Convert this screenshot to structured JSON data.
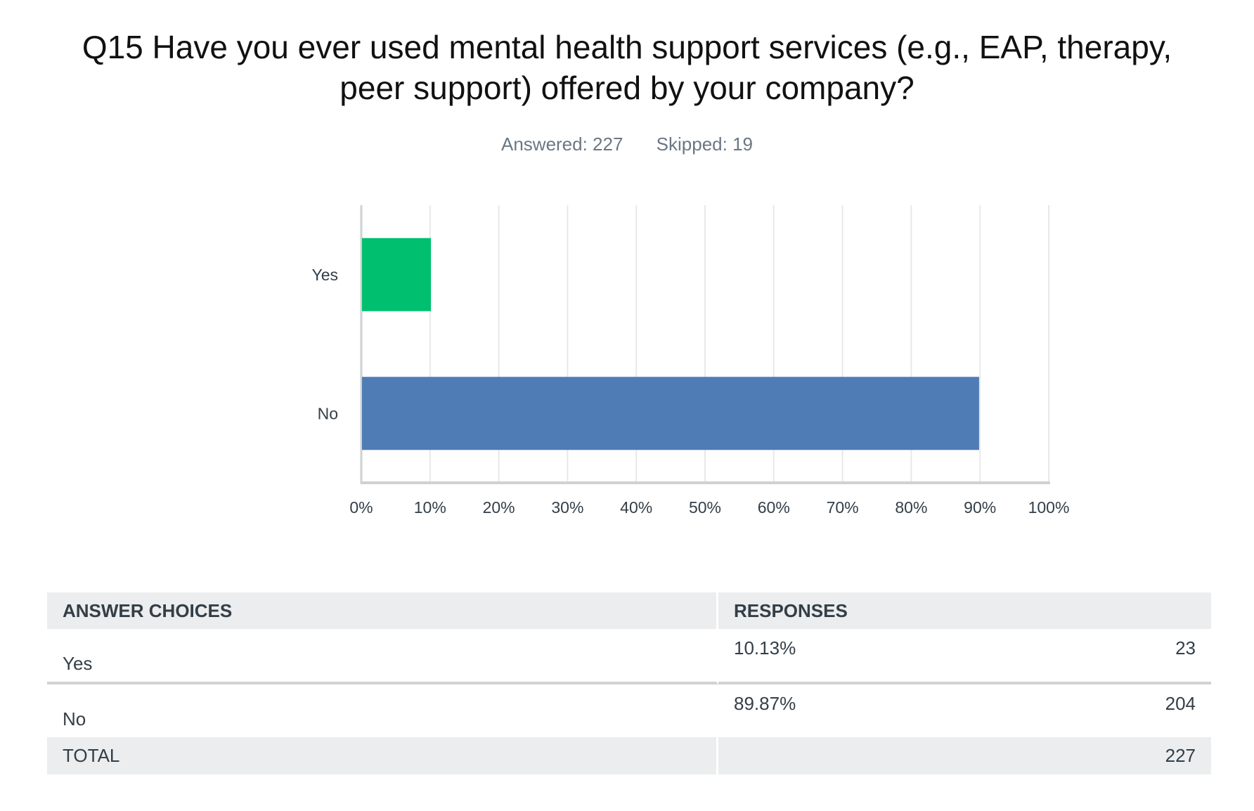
{
  "header": {
    "title": "Q15 Have you ever used mental health support services (e.g., EAP, therapy, peer support) offered by your company?",
    "answered": "Answered: 227",
    "skipped": "Skipped: 19"
  },
  "chart_data": {
    "type": "bar",
    "orientation": "horizontal",
    "categories": [
      "Yes",
      "No"
    ],
    "values": [
      10.13,
      89.87
    ],
    "colors": [
      "#00bf6f",
      "#507cb6"
    ],
    "xlim": [
      0,
      100
    ],
    "xticks": [
      "0%",
      "10%",
      "20%",
      "30%",
      "40%",
      "50%",
      "60%",
      "70%",
      "80%",
      "90%",
      "100%"
    ],
    "grid": true
  },
  "table": {
    "headers": [
      "ANSWER CHOICES",
      "RESPONSES"
    ],
    "rows": [
      {
        "choice": "Yes",
        "percent": "10.13%",
        "count": "23"
      },
      {
        "choice": "No",
        "percent": "89.87%",
        "count": "204"
      }
    ],
    "total_label": "TOTAL",
    "total_count": "227"
  }
}
